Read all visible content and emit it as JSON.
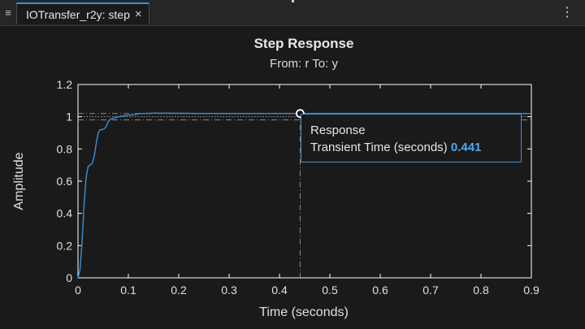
{
  "tab": {
    "label": "IOTransfer_r2y: step",
    "close_icon": "×",
    "menu_icon": "≡",
    "overflow_icon": "⋮"
  },
  "plot": {
    "title": "Step Response",
    "subtitle": "From: r  To: y",
    "ylabel": "Amplitude",
    "xlabel": "Time (seconds)"
  },
  "datatip": {
    "heading": "Response",
    "label": "Transient  Time  (seconds)",
    "value": "0.441"
  },
  "colors": {
    "background": "#1a1a1a",
    "axes": "#ffffff",
    "response": "#3c8fd6",
    "accent": "#4ea8f0"
  },
  "chart_data": {
    "type": "line",
    "title": "Step Response",
    "subtitle": "From: r  To: y",
    "xlabel": "Time (seconds)",
    "ylabel": "Amplitude",
    "xlim": [
      0,
      0.9
    ],
    "ylim": [
      0,
      1.2
    ],
    "xticks": [
      "0",
      "0.1",
      "0.2",
      "0.3",
      "0.4",
      "0.5",
      "0.6",
      "0.7",
      "0.8",
      "0.9"
    ],
    "yticks": [
      "0",
      "0.2",
      "0.4",
      "0.6",
      "0.8",
      "1",
      "1.2"
    ],
    "grid": false,
    "series": [
      {
        "x": [
          0,
          0.004,
          0.008,
          0.012,
          0.016,
          0.02,
          0.024,
          0.028,
          0.032,
          0.036,
          0.04,
          0.044,
          0.048,
          0.052,
          0.056,
          0.06,
          0.065,
          0.07,
          0.075,
          0.08,
          0.09,
          0.1,
          0.11,
          0.12,
          0.13,
          0.15,
          0.17,
          0.2,
          0.25,
          0.3,
          0.35,
          0.4,
          0.441,
          0.5,
          0.6,
          0.7,
          0.8,
          0.9
        ],
        "y": [
          0,
          0.05,
          0.22,
          0.45,
          0.62,
          0.69,
          0.7,
          0.71,
          0.75,
          0.83,
          0.9,
          0.92,
          0.92,
          0.925,
          0.94,
          0.97,
          0.985,
          0.99,
          0.995,
          1.0,
          1.005,
          1.01,
          1.012,
          1.018,
          1.02,
          1.022,
          1.022,
          1.021,
          1.02,
          1.02,
          1.02,
          1.02,
          1.02,
          1.02,
          1.02,
          1.02,
          1.02,
          1.02
        ]
      }
    ],
    "reference_lines": {
      "final_value": 1.0,
      "upper_band": 1.02,
      "lower_band": 0.98
    },
    "marker": {
      "x": 0.441,
      "y": 1.02
    }
  }
}
